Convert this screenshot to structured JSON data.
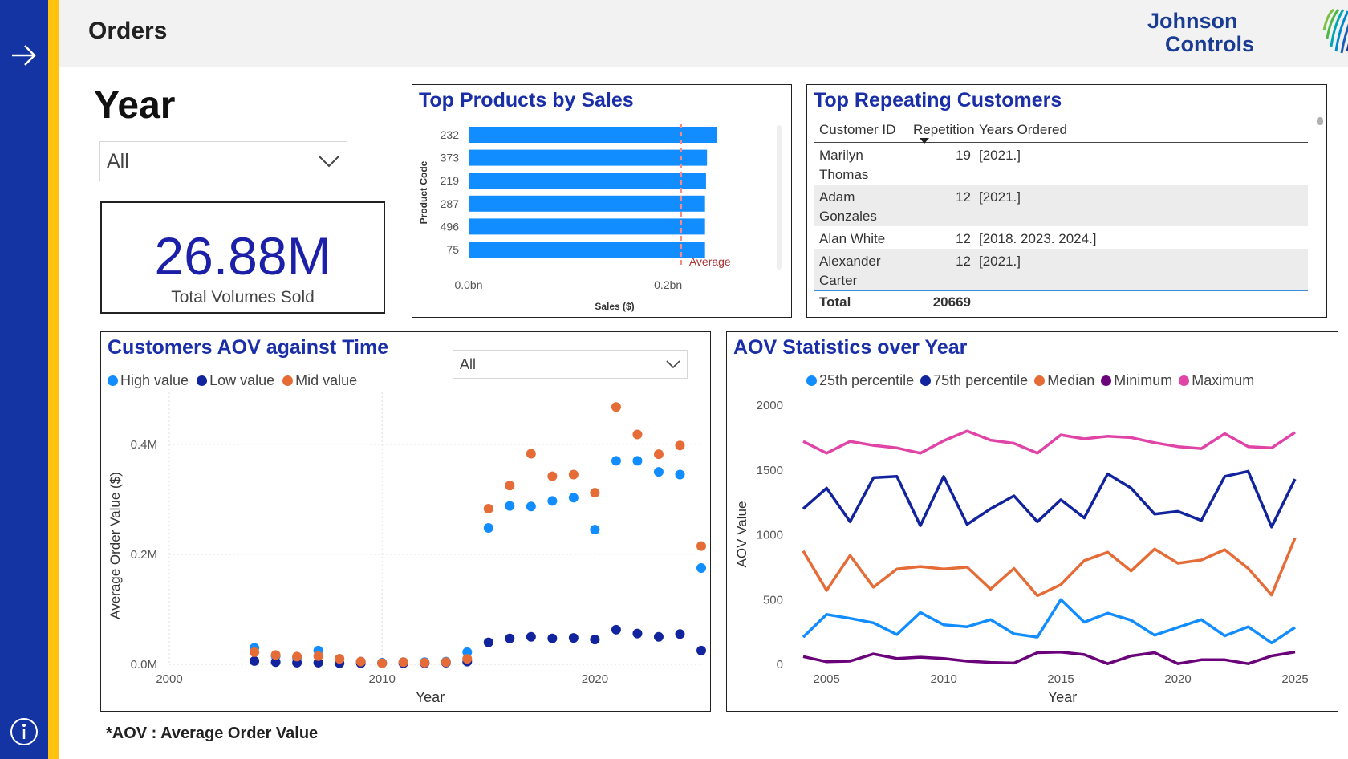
{
  "page": {
    "title": "Orders"
  },
  "brand": {
    "line1": "Johnson",
    "line2": "Controls",
    "color": "#1a3c93"
  },
  "nav": {
    "arrow_icon": "arrow-right-icon",
    "info_icon": "info-icon"
  },
  "filter": {
    "label": "Year",
    "selected": "All"
  },
  "kpi": {
    "value": "26.88M",
    "label": "Total Volumes Sold"
  },
  "top_products": {
    "title": "Top Products by Sales",
    "chart_data": {
      "type": "bar",
      "orientation": "horizontal",
      "categories": [
        "232",
        "373",
        "219",
        "287",
        "496",
        "75"
      ],
      "values": [
        0.249,
        0.239,
        0.238,
        0.237,
        0.237,
        0.237
      ],
      "average": 0.213,
      "average_label": "Average",
      "xlabel": "Sales ($)",
      "ylabel": "Product Code",
      "xticks": [
        "0.0bn",
        "0.2bn"
      ],
      "xlim": [
        0,
        0.3
      ],
      "color": "#118DFF"
    }
  },
  "top_customers": {
    "title": "Top Repeating Customers",
    "columns": [
      "Customer ID",
      "Repetition",
      "Years Ordered"
    ],
    "rows": [
      {
        "name_line1": "Marilyn",
        "name_line2": "Thomas",
        "repetition": "19",
        "years": "[2021.]"
      },
      {
        "name_line1": "Adam",
        "name_line2": "Gonzales",
        "repetition": "12",
        "years": "[2021.]"
      },
      {
        "name_line1": "Alan White",
        "name_line2": "",
        "repetition": "12",
        "years": "[2018. 2023. 2024.]"
      },
      {
        "name_line1": "Alexander",
        "name_line2": "Carter",
        "repetition": "12",
        "years": "[2021.]"
      }
    ],
    "total_label": "Total",
    "total_value": "20669"
  },
  "aov_time": {
    "title": "Customers AOV against Time",
    "filter_value": "All",
    "chart_data": {
      "type": "scatter",
      "xlabel": "Year",
      "ylabel": "Average Order Value ($)",
      "xlim": [
        2000,
        2025
      ],
      "ylim": [
        0,
        0.48
      ],
      "xticks": [
        "2000",
        "2010",
        "2020"
      ],
      "yticks": [
        "0.0M",
        "0.2M",
        "0.4M"
      ],
      "series": [
        {
          "name": "High value",
          "color": "#118DFF",
          "x": [
            2004,
            2005,
            2006,
            2007,
            2008,
            2009,
            2010,
            2011,
            2012,
            2013,
            2014,
            2015,
            2016,
            2017,
            2018,
            2019,
            2020,
            2021,
            2022,
            2023,
            2024,
            2025
          ],
          "y": [
            0.03,
            0.015,
            0.012,
            0.025,
            0.01,
            0.005,
            0.003,
            0.004,
            0.004,
            0.005,
            0.022,
            0.248,
            0.288,
            0.287,
            0.297,
            0.303,
            0.245,
            0.37,
            0.37,
            0.35,
            0.345,
            0.175
          ]
        },
        {
          "name": "Low value",
          "color": "#12239E",
          "x": [
            2004,
            2005,
            2006,
            2007,
            2008,
            2009,
            2010,
            2011,
            2012,
            2013,
            2014,
            2015,
            2016,
            2017,
            2018,
            2019,
            2020,
            2021,
            2022,
            2023,
            2024,
            2025
          ],
          "y": [
            0.006,
            0.004,
            0.003,
            0.003,
            0.002,
            0.002,
            0.002,
            0.002,
            0.002,
            0.003,
            0.005,
            0.04,
            0.047,
            0.05,
            0.047,
            0.048,
            0.045,
            0.063,
            0.056,
            0.05,
            0.055,
            0.025
          ]
        },
        {
          "name": "Mid value",
          "color": "#E66C37",
          "x": [
            2004,
            2005,
            2006,
            2007,
            2008,
            2009,
            2010,
            2011,
            2012,
            2013,
            2014,
            2015,
            2016,
            2017,
            2018,
            2019,
            2020,
            2021,
            2022,
            2023,
            2024,
            2025
          ],
          "y": [
            0.022,
            0.017,
            0.014,
            0.015,
            0.01,
            0.005,
            0.002,
            0.004,
            0.003,
            0.004,
            0.01,
            0.283,
            0.325,
            0.383,
            0.342,
            0.345,
            0.312,
            0.468,
            0.418,
            0.382,
            0.398,
            0.215
          ]
        }
      ]
    }
  },
  "aov_stats": {
    "title": "AOV Statistics over Year",
    "chart_data": {
      "type": "line",
      "xlabel": "Year",
      "ylabel": "AOV Value",
      "xlim": [
        2004,
        2025
      ],
      "ylim": [
        0,
        2000
      ],
      "xticks": [
        "2005",
        "2010",
        "2015",
        "2020",
        "2025"
      ],
      "yticks": [
        "0",
        "500",
        "1000",
        "1500",
        "2000"
      ],
      "x": [
        2004,
        2005,
        2006,
        2007,
        2008,
        2009,
        2010,
        2011,
        2012,
        2013,
        2014,
        2015,
        2016,
        2017,
        2018,
        2019,
        2020,
        2021,
        2022,
        2023,
        2024,
        2025
      ],
      "series": [
        {
          "name": "25th percentile",
          "color": "#118DFF",
          "values": [
            210,
            385,
            355,
            320,
            230,
            400,
            305,
            290,
            345,
            235,
            210,
            500,
            325,
            395,
            340,
            225,
            285,
            345,
            220,
            290,
            165,
            285
          ]
        },
        {
          "name": "75th percentile",
          "color": "#12239E",
          "values": [
            1200,
            1360,
            1100,
            1440,
            1450,
            1070,
            1450,
            1080,
            1200,
            1300,
            1100,
            1270,
            1130,
            1470,
            1360,
            1160,
            1180,
            1110,
            1450,
            1490,
            1060,
            1430
          ]
        },
        {
          "name": "Median",
          "color": "#E66C37",
          "values": [
            875,
            570,
            840,
            595,
            735,
            755,
            735,
            750,
            580,
            740,
            530,
            615,
            800,
            865,
            720,
            890,
            780,
            805,
            885,
            740,
            535,
            975
          ]
        },
        {
          "name": "Minimum",
          "color": "#6B007B",
          "values": [
            60,
            20,
            25,
            80,
            45,
            55,
            45,
            25,
            15,
            10,
            90,
            95,
            75,
            5,
            65,
            90,
            5,
            35,
            35,
            5,
            65,
            95
          ]
        },
        {
          "name": "Maximum",
          "color": "#E044A7",
          "values": [
            1720,
            1630,
            1720,
            1690,
            1670,
            1630,
            1725,
            1800,
            1730,
            1705,
            1630,
            1770,
            1740,
            1760,
            1750,
            1710,
            1680,
            1665,
            1780,
            1680,
            1670,
            1790
          ]
        }
      ]
    }
  },
  "footnote": "*AOV : Average Order Value"
}
